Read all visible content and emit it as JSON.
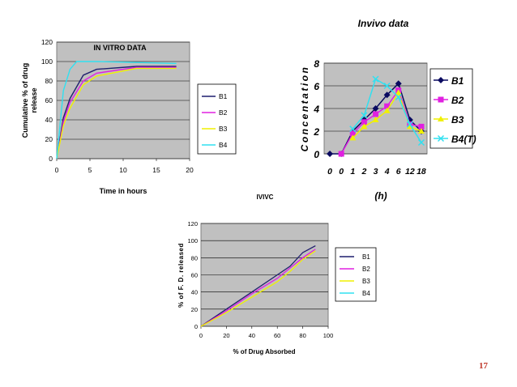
{
  "page_number": "17",
  "chart_data": [
    {
      "type": "line",
      "title": "IN VITRO DATA",
      "xlabel": "Time in hours",
      "ylabel": "Cumulative % of drug release",
      "ylabel_lines": [
        "Cumulative % of drug",
        "release"
      ],
      "xlim": [
        0,
        20
      ],
      "ylim": [
        0,
        120
      ],
      "xticks": [
        "0",
        "5",
        "10",
        "15",
        "20"
      ],
      "yticks": [
        "0",
        "20",
        "40",
        "60",
        "80",
        "100",
        "120"
      ],
      "grid": true,
      "legend": "right",
      "series": [
        {
          "name": "B1",
          "color": "#1f1f6e",
          "points": [
            [
              0,
              0
            ],
            [
              1,
              42
            ],
            [
              2,
              62
            ],
            [
              4,
              86
            ],
            [
              6,
              92
            ],
            [
              12,
              95
            ],
            [
              18,
              95
            ]
          ]
        },
        {
          "name": "B2",
          "color": "#e020e0",
          "points": [
            [
              0,
              0
            ],
            [
              1,
              38
            ],
            [
              2,
              58
            ],
            [
              4,
              80
            ],
            [
              6,
              88
            ],
            [
              12,
              94
            ],
            [
              18,
              94
            ]
          ]
        },
        {
          "name": "B3",
          "color": "#f0f000",
          "points": [
            [
              0,
              0
            ],
            [
              1,
              34
            ],
            [
              2,
              52
            ],
            [
              4,
              76
            ],
            [
              6,
              85
            ],
            [
              12,
              93
            ],
            [
              18,
              93
            ]
          ]
        },
        {
          "name": "B4",
          "color": "#30e0f0",
          "points": [
            [
              0,
              0
            ],
            [
              1,
              70
            ],
            [
              2,
              92
            ],
            [
              3,
              100
            ],
            [
              6,
              100
            ],
            [
              12,
              99
            ],
            [
              18,
              98
            ]
          ]
        }
      ]
    },
    {
      "type": "line",
      "title": "Invivo data",
      "xlabel": "(h)",
      "ylabel": "Concentation",
      "ylim": [
        0,
        8
      ],
      "categories": [
        "0",
        "0",
        "1",
        "2",
        "3",
        "4",
        "6",
        "12",
        "18"
      ],
      "yticks": [
        "0",
        "2",
        "4",
        "6",
        "8"
      ],
      "grid": true,
      "legend": "right",
      "series": [
        {
          "name": "B1",
          "color": "#0a0a60",
          "marker": "diamond",
          "values": [
            0,
            0,
            2.0,
            3.0,
            4.0,
            5.2,
            6.2,
            3.0,
            2.0
          ]
        },
        {
          "name": "B2",
          "color": "#e020e0",
          "marker": "square",
          "values": [
            null,
            0,
            1.8,
            2.8,
            3.5,
            4.2,
            5.6,
            2.6,
            2.4
          ]
        },
        {
          "name": "B3",
          "color": "#f0f000",
          "marker": "triangle",
          "values": [
            null,
            null,
            1.4,
            2.4,
            3.0,
            3.8,
            5.4,
            2.4,
            2.0
          ]
        },
        {
          "name": "B4(T)",
          "color": "#30e0f0",
          "marker": "x",
          "values": [
            null,
            null,
            2.2,
            3.4,
            6.6,
            6.0,
            5.0,
            2.6,
            1.0
          ]
        }
      ]
    },
    {
      "type": "line",
      "title": "IVIVC",
      "xlabel": "% of Drug Absorbed",
      "ylabel": "% of F. D. released",
      "xlim": [
        0,
        100
      ],
      "ylim": [
        0,
        120
      ],
      "xticks": [
        "0",
        "20",
        "40",
        "60",
        "80",
        "100"
      ],
      "yticks": [
        "0",
        "20",
        "40",
        "60",
        "80",
        "100",
        "120"
      ],
      "grid": true,
      "legend": "right",
      "series": [
        {
          "name": "B1",
          "color": "#1f1f6e",
          "points": [
            [
              0,
              0
            ],
            [
              20,
              20
            ],
            [
              40,
              40
            ],
            [
              60,
              60
            ],
            [
              70,
              70
            ],
            [
              80,
              86
            ],
            [
              90,
              94
            ]
          ]
        },
        {
          "name": "B2",
          "color": "#e020e0",
          "points": [
            [
              0,
              0
            ],
            [
              20,
              18
            ],
            [
              40,
              38
            ],
            [
              60,
              56
            ],
            [
              70,
              68
            ],
            [
              80,
              80
            ],
            [
              90,
              90
            ]
          ]
        },
        {
          "name": "B3",
          "color": "#f0f000",
          "points": [
            [
              0,
              0
            ],
            [
              20,
              16
            ],
            [
              40,
              34
            ],
            [
              60,
              52
            ],
            [
              70,
              64
            ],
            [
              80,
              78
            ],
            [
              90,
              88
            ]
          ]
        },
        {
          "name": "B4",
          "color": "#30e0f0",
          "points": []
        }
      ]
    }
  ]
}
